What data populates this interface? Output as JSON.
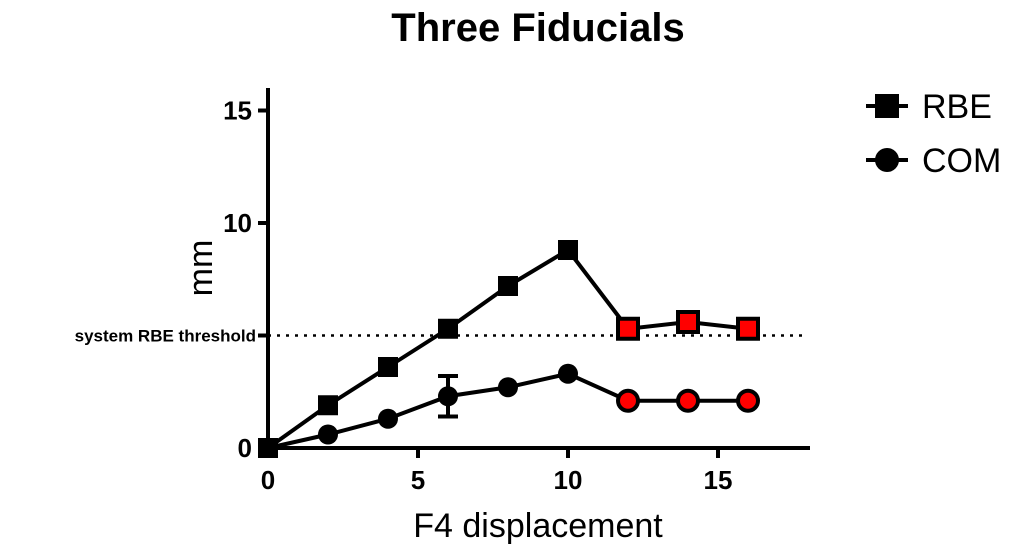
{
  "chart_data": {
    "type": "line",
    "title": "Three Fiducials",
    "xlabel": "F4 displacement",
    "ylabel": "mm",
    "xlim": [
      0,
      18
    ],
    "ylim": [
      0,
      16
    ],
    "x_ticks": [
      0,
      5,
      10,
      15
    ],
    "y_ticks": [
      0,
      10,
      15
    ],
    "legend_position": "top-right",
    "grid": false,
    "threshold": {
      "label": "system RBE threshold",
      "value": 5,
      "style": "dotted"
    },
    "highlight_color": "#ff0000",
    "series": [
      {
        "name": "RBE",
        "marker": "square",
        "color": "#000000",
        "x": [
          0,
          2,
          4,
          6,
          8,
          10,
          12,
          14,
          16
        ],
        "y": [
          0,
          1.9,
          3.6,
          5.3,
          7.2,
          8.8,
          5.3,
          5.6,
          5.3
        ],
        "highlighted_from_index": 6
      },
      {
        "name": "COM",
        "marker": "circle",
        "color": "#000000",
        "x": [
          0,
          2,
          4,
          6,
          8,
          10,
          12,
          14,
          16
        ],
        "y": [
          0,
          0.6,
          1.3,
          2.3,
          2.7,
          3.3,
          2.1,
          2.1,
          2.1
        ],
        "error": [
          0,
          0,
          0,
          0.9,
          0,
          0,
          0,
          0,
          0
        ],
        "highlighted_from_index": 6
      }
    ]
  }
}
